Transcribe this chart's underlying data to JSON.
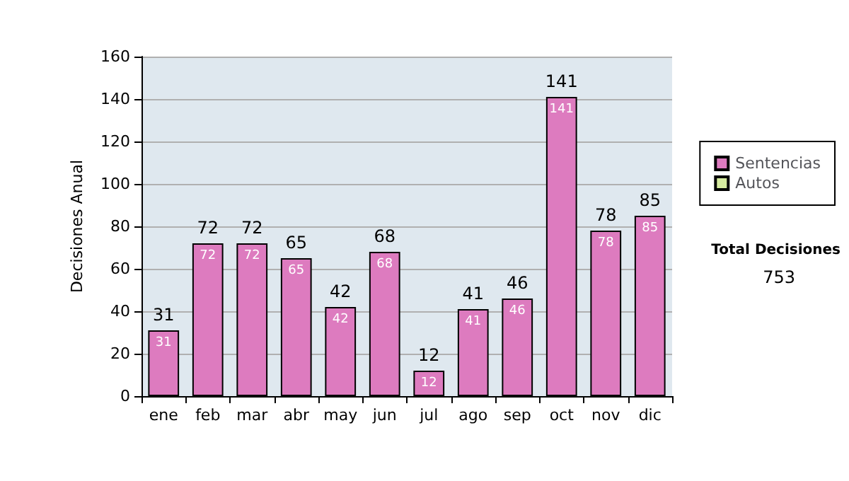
{
  "chart_data": {
    "type": "bar",
    "ylabel": "Decisiones Anual",
    "categories": [
      "ene",
      "feb",
      "mar",
      "abr",
      "may",
      "jun",
      "jul",
      "ago",
      "sep",
      "oct",
      "nov",
      "dic"
    ],
    "series": [
      {
        "name": "Sentencias",
        "color": "#dd7bbf",
        "values": [
          31,
          72,
          72,
          65,
          42,
          68,
          12,
          41,
          46,
          141,
          78,
          85
        ]
      },
      {
        "name": "Autos",
        "color": "#d6eca0",
        "values": [
          null,
          null,
          null,
          null,
          null,
          null,
          null,
          null,
          null,
          null,
          null,
          null
        ]
      }
    ],
    "ylim": [
      0,
      160
    ],
    "yticks": [
      0,
      20,
      40,
      60,
      80,
      100,
      120,
      140,
      160
    ],
    "grid": "y",
    "legend": "right",
    "data_labels": true,
    "annotations": [
      "Total Decisiones",
      "753",
      {
        "text": "31",
        "x": "ene",
        "y": 31
      },
      {
        "text": "72",
        "x": "feb",
        "y": 72
      },
      {
        "text": "72",
        "x": "mar",
        "y": 72
      },
      {
        "text": "65",
        "x": "abr",
        "y": 65
      },
      {
        "text": "42",
        "x": "may",
        "y": 42
      },
      {
        "text": "68",
        "x": "jun",
        "y": 68
      },
      {
        "text": "12",
        "x": "jul",
        "y": 12
      },
      {
        "text": "41",
        "x": "ago",
        "y": 41
      },
      {
        "text": "46",
        "x": "sep",
        "y": 46
      },
      {
        "text": "141",
        "x": "oct",
        "y": 141
      },
      {
        "text": "78",
        "x": "nov",
        "y": 78
      },
      {
        "text": "85",
        "x": "dic",
        "y": 85
      }
    ]
  }
}
